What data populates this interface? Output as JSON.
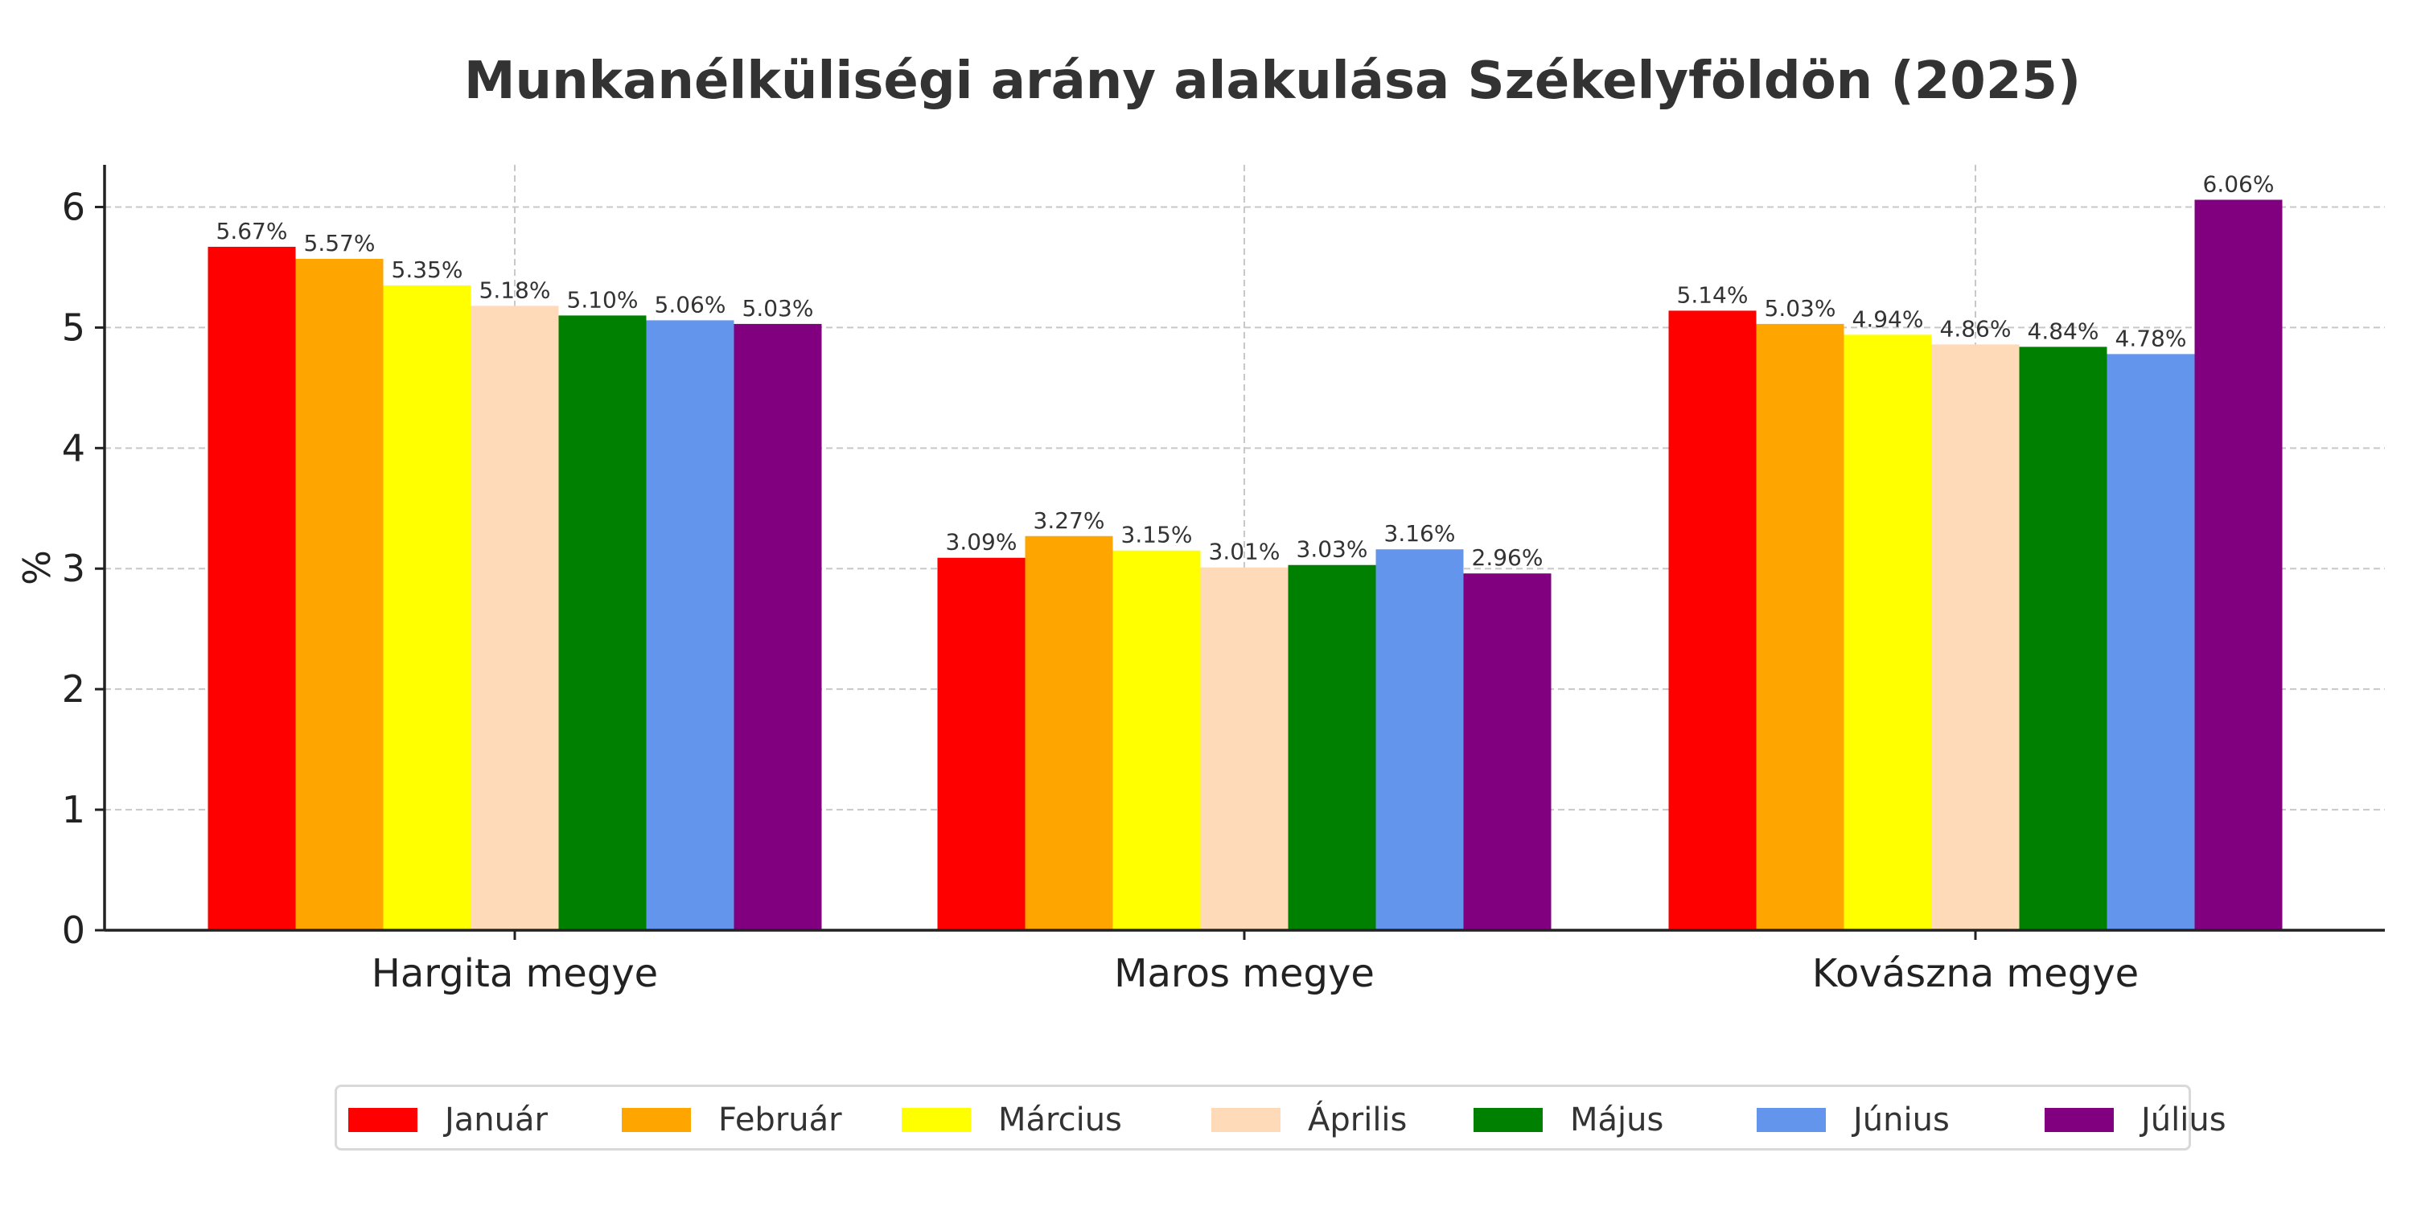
{
  "chart_data": {
    "type": "bar",
    "title": "Munkanélküliségi arány alakulása Székelyföldön (2025)",
    "xlabel": "",
    "ylabel": "%",
    "ylim": [
      0,
      6.35
    ],
    "yticks": [
      "0",
      "1",
      "2",
      "3",
      "4",
      "5",
      "6"
    ],
    "grid": true,
    "legend_position": "bottom-center",
    "categories": [
      "Hargita megye",
      "Maros megye",
      "Kovászna megye"
    ],
    "series": [
      {
        "name": "Január",
        "color": "#ff0000",
        "values": [
          5.67,
          3.09,
          5.14
        ],
        "labels": [
          "5.67%",
          "3.09%",
          "5.14%"
        ]
      },
      {
        "name": "Február",
        "color": "#ffa500",
        "values": [
          5.57,
          3.27,
          5.03
        ],
        "labels": [
          "5.57%",
          "3.27%",
          "5.03%"
        ]
      },
      {
        "name": "Március",
        "color": "#ffff00",
        "values": [
          5.35,
          3.15,
          4.94
        ],
        "labels": [
          "5.35%",
          "3.15%",
          "4.94%"
        ]
      },
      {
        "name": "Április",
        "color": "#ffdab9",
        "values": [
          5.18,
          3.01,
          4.86
        ],
        "labels": [
          "5.18%",
          "3.01%",
          "4.86%"
        ]
      },
      {
        "name": "Május",
        "color": "#008000",
        "values": [
          5.1,
          3.03,
          4.84
        ],
        "labels": [
          "5.10%",
          "3.03%",
          "4.84%"
        ]
      },
      {
        "name": "Június",
        "color": "#6495ed",
        "values": [
          5.06,
          3.16,
          4.78
        ],
        "labels": [
          "5.06%",
          "3.16%",
          "4.78%"
        ]
      },
      {
        "name": "Július",
        "color": "#800080",
        "values": [
          5.03,
          2.96,
          6.06
        ],
        "labels": [
          "5.03%",
          "2.96%",
          "6.06%"
        ]
      }
    ]
  }
}
